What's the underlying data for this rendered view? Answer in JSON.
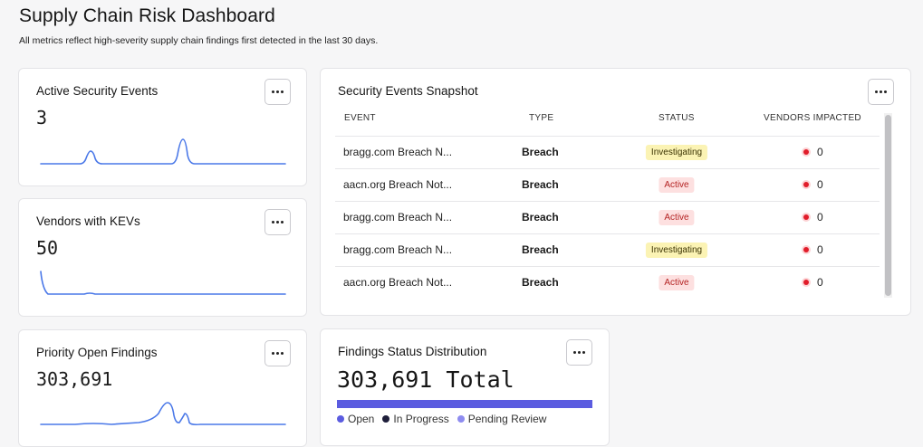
{
  "header": {
    "title": "Supply Chain Risk Dashboard",
    "subtitle": "All metrics reflect high-severity supply chain findings first detected in the last 30 days."
  },
  "metrics": [
    {
      "title": "Active Security Events",
      "value": "3"
    },
    {
      "title": "Vendors with KEVs",
      "value": "50"
    },
    {
      "title": "Priority Open Findings",
      "value": "303,691"
    }
  ],
  "snapshot": {
    "title": "Security Events Snapshot",
    "columns": [
      "EVENT",
      "TYPE",
      "STATUS",
      "VENDORS IMPACTED"
    ],
    "rows": [
      {
        "event": "bragg.com Breach N...",
        "type": "Breach",
        "status": "Investigating",
        "vendors": "0"
      },
      {
        "event": "aacn.org Breach Not...",
        "type": "Breach",
        "status": "Active",
        "vendors": "0"
      },
      {
        "event": "bragg.com Breach N...",
        "type": "Breach",
        "status": "Active",
        "vendors": "0"
      },
      {
        "event": "bragg.com Breach N...",
        "type": "Breach",
        "status": "Investigating",
        "vendors": "0"
      },
      {
        "event": "aacn.org Breach Not...",
        "type": "Breach",
        "status": "Active",
        "vendors": "0"
      }
    ]
  },
  "distribution": {
    "title": "Findings Status Distribution",
    "total": "303,691 Total",
    "legend": [
      {
        "label": "Open",
        "color": "#5b5ce0"
      },
      {
        "label": "In Progress",
        "color": "#1e1e3a"
      },
      {
        "label": "Pending Review",
        "color": "#8e8cf0"
      }
    ]
  },
  "icons": {
    "more": "more-horizontal-icon",
    "status_dot": "red-dot-icon"
  }
}
